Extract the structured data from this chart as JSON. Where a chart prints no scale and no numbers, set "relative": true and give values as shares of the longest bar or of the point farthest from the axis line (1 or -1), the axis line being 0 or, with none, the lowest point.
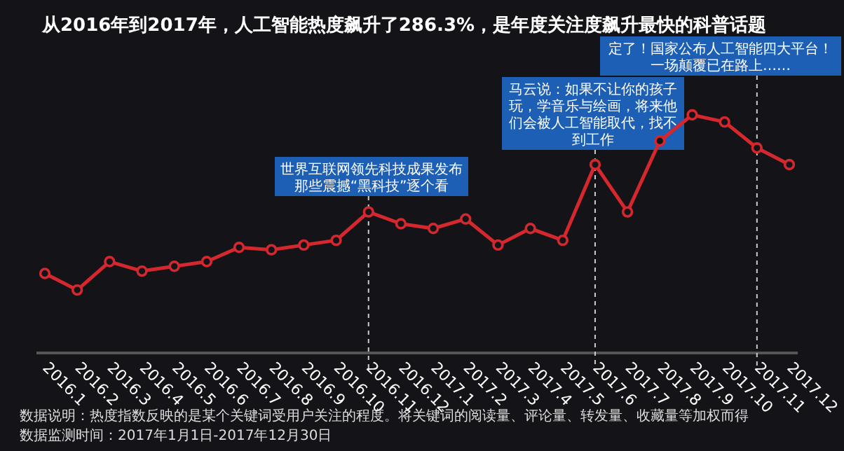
{
  "chart_data": {
    "type": "line",
    "title": "从2016年到2017年，人工智能热度飙升了286.3%，是年度关注度飙升最快的科普话题",
    "categories": [
      "2016.1",
      "2016.2",
      "2016.3",
      "2016.4",
      "2016.5",
      "2016.6",
      "2016.7",
      "2016.8",
      "2016.9",
      "2016.10",
      "2016.11",
      "2016.12",
      "2017.1",
      "2017.2",
      "2017.3",
      "2017.4",
      "2017.5",
      "2017.6",
      "2017.7",
      "2017.8",
      "2017.9",
      "2017.10",
      "2017.11",
      "2017.12"
    ],
    "series": [
      {
        "color": "#d4282e",
        "values": [
          0.33,
          0.26,
          0.38,
          0.34,
          0.36,
          0.38,
          0.44,
          0.43,
          0.45,
          0.47,
          0.59,
          0.54,
          0.52,
          0.56,
          0.45,
          0.52,
          0.47,
          0.79,
          0.59,
          0.89,
          1,
          0.97,
          0.86,
          0.79
        ]
      }
    ],
    "relative": true,
    "marker": "circle",
    "line_style": "solid",
    "ref_lines": [
      {
        "axis": "x",
        "value": "2016.11",
        "label": "世界互联网领先科技成果发布那些震撼“黑科技”逐个看",
        "color": "#cccccc",
        "line_style": "dashed"
      },
      {
        "axis": "x",
        "value": "2017.6",
        "label": "马云说：如果不让你的孩子玩，学音乐与绘画，将来他们会被人工智能取代，找不到工作",
        "color": "#cccccc",
        "line_style": "dashed"
      },
      {
        "axis": "x",
        "value": "2017.11",
        "label": "定了！国家公布人工智能四大平台！一场颠覆已在路上……",
        "color": "#cccccc",
        "line_style": "dashed"
      }
    ],
    "annotations": [
      "数据说明：热度指数反映的是某个关键词受用户关注的程度。将关键词的阅读量、评论量、转发量、收藏量等加权而得",
      "数据监测时间：2017年1月1日-2017年12月30日"
    ]
  }
}
